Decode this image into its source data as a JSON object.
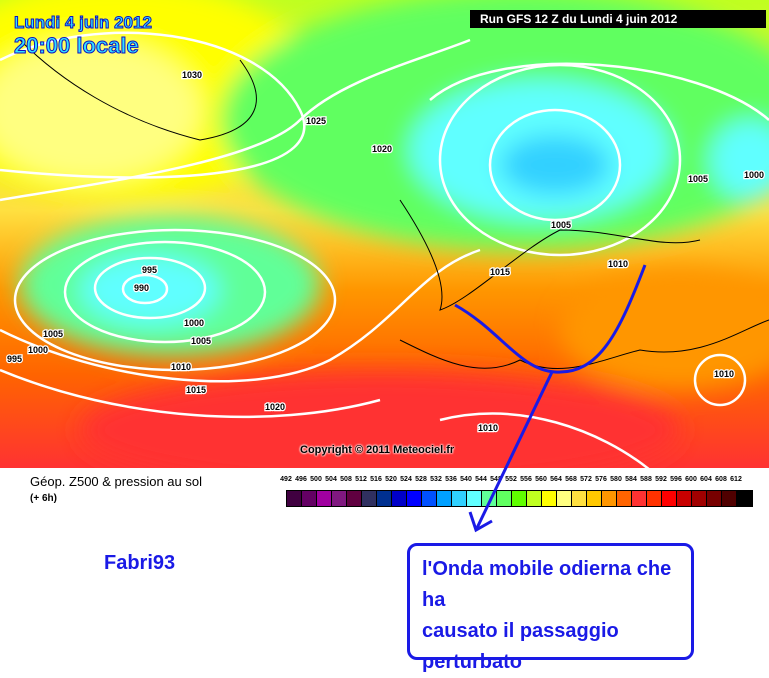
{
  "header": {
    "date": "Lundi 4 juin 2012",
    "time": "20:00 locale",
    "run": "Run GFS 12 Z du Lundi 4 juin 2012"
  },
  "map": {
    "copyright": "Copyright © 2011 Meteociel.fr",
    "isobar_labels": [
      "1030",
      "1025",
      "1020",
      "995",
      "990",
      "1000",
      "1005",
      "1010",
      "1015",
      "1020",
      "1005",
      "1000",
      "995",
      "1015",
      "1005",
      "1005",
      "1000",
      "1010",
      "1010",
      "1010"
    ]
  },
  "legend": {
    "title": "Géop. Z500 & pression au sol",
    "subtitle": "(+ 6h)",
    "ticks": [
      "492",
      "496",
      "500",
      "504",
      "508",
      "512",
      "516",
      "520",
      "524",
      "528",
      "532",
      "536",
      "540",
      "544",
      "548",
      "552",
      "556",
      "560",
      "564",
      "568",
      "572",
      "576",
      "580",
      "584",
      "588",
      "592",
      "596",
      "600",
      "604",
      "608",
      "612"
    ],
    "colors": [
      "#400040",
      "#640064",
      "#a000a0",
      "#801880",
      "#600040",
      "#303060",
      "#003090",
      "#0000c8",
      "#0000ff",
      "#0050ff",
      "#00a0ff",
      "#30d0ff",
      "#60ffff",
      "#60ff98",
      "#60ff60",
      "#60ff00",
      "#c0ff20",
      "#ffff00",
      "#ffff80",
      "#ffe040",
      "#ffc800",
      "#ff9600",
      "#ff6400",
      "#ff3232",
      "#ff3200",
      "#ff0000",
      "#c80000",
      "#a00000",
      "#780000",
      "#500000",
      "#000000"
    ]
  },
  "annotation": {
    "author": "Fabri93",
    "note_lines": [
      "l'Onda mobile odierna che ha",
      "causato il passaggio",
      "perturbato"
    ],
    "color": "#1a1ae6"
  }
}
